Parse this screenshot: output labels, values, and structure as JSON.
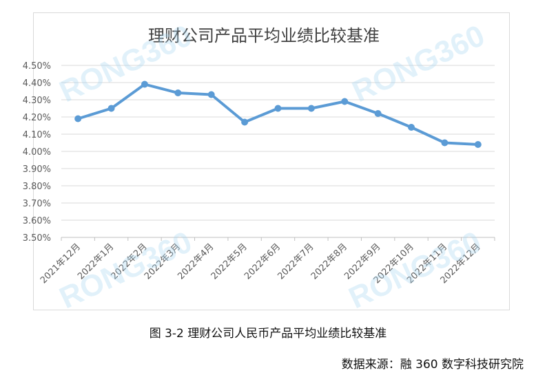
{
  "chart_data": {
    "type": "line",
    "title": "理财公司产品平均业绩比较基准",
    "categories": [
      "2021年12月",
      "2022年1月",
      "2022年2月",
      "2022年3月",
      "2022年4月",
      "2022年5月",
      "2022年6月",
      "2022年7月",
      "2022年8月",
      "2022年9月",
      "2022年10月",
      "2022年11月",
      "2022年12月"
    ],
    "series": [
      {
        "values": [
          4.19,
          4.25,
          4.39,
          4.34,
          4.33,
          4.17,
          4.25,
          4.25,
          4.29,
          4.22,
          4.14,
          4.05,
          4.04
        ]
      }
    ],
    "ylim": [
      3.5,
      4.5
    ],
    "yticks": [
      "3.50%",
      "3.60%",
      "3.70%",
      "3.80%",
      "3.90%",
      "4.00%",
      "4.10%",
      "4.20%",
      "4.30%",
      "4.40%",
      "4.50%"
    ],
    "grid": true,
    "legend": "none",
    "line_color": "#5b9bd5"
  },
  "caption": "图 3-2 理财公司人民币产品平均业绩比较基准",
  "source": "数据来源：融 360 数字科技研究院",
  "watermark": "RONG360"
}
